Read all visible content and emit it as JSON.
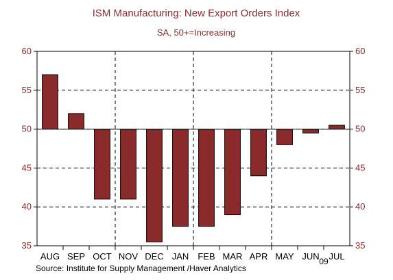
{
  "chart_data": {
    "type": "bar",
    "title": "ISM Manufacturing: New Export Orders Index",
    "subtitle": "SA, 50+=Increasing",
    "categories": [
      "AUG",
      "SEP",
      "OCT",
      "NOV",
      "DEC",
      "JAN",
      "FEB",
      "MAR",
      "APR",
      "MAY",
      "JUN",
      "JUL"
    ],
    "values": [
      57.0,
      52.0,
      41.0,
      41.0,
      35.5,
      37.5,
      37.5,
      39.0,
      44.0,
      48.0,
      49.5,
      50.5
    ],
    "baseline": 50,
    "ylim": [
      35,
      60
    ],
    "yticks": [
      35,
      40,
      45,
      50,
      55,
      60
    ],
    "xlabel": "",
    "ylabel": "",
    "year_marker": "09",
    "grid": true,
    "bar_color": "#8b2a2a",
    "tick_label_color": "#8b2a2a",
    "source": "Source:  Institute for Supply Management /Haver Analytics"
  }
}
